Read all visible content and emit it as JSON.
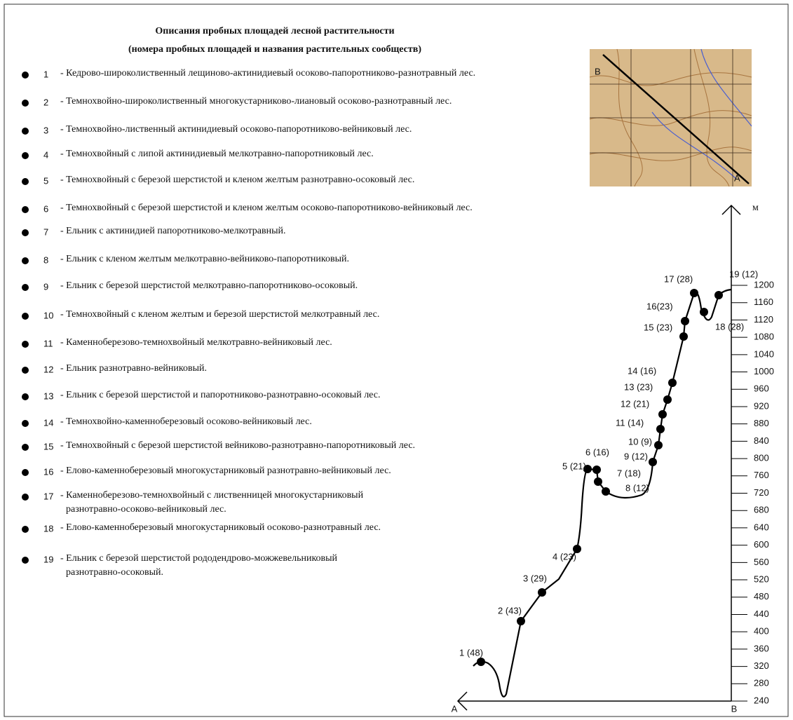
{
  "title": [
    "Описания пробных площадей лесной растительности",
    "(номера пробных площадей и названия растительных сообществ)"
  ],
  "legend": [
    {
      "number": "1",
      "lines": [
        "- Кедрово-широколиственный лещиново-актинидиевый осоково-папоротниково-разнотравный лес."
      ]
    },
    {
      "number": "2",
      "lines": [
        "- Темнохвойно-широколиственный многокустарниково-лиановый осоково-разнотравный лес."
      ]
    },
    {
      "number": "3",
      "lines": [
        "- Темнохвойно-лиственный актинидиевый осоково-папоротниково-вейниковый лес."
      ]
    },
    {
      "number": "4",
      "lines": [
        "- Темнохвойный с липой актинидиевый мелкотравно-папоротниковый лес."
      ]
    },
    {
      "number": "5",
      "lines": [
        "- Темнохвойный с березой шерстистой и кленом желтым разнотравно-осоковый лес."
      ]
    },
    {
      "number": "6",
      "lines": [
        "- Темнохвойный с березой шерстистой и кленом желтым осоково-папоротниково-вейниковый лес."
      ]
    },
    {
      "number": "7",
      "lines": [
        "- Ельник с актинидией папоротниково-мелкотравный."
      ]
    },
    {
      "number": "8",
      "lines": [
        "- Ельник с кленом желтым мелкотравно-вейниково-папоротниковый."
      ]
    },
    {
      "number": "9",
      "lines": [
        "- Ельник с березой шерстистой мелкотравно-папоротниково-осоковый."
      ]
    },
    {
      "number": "10",
      "lines": [
        "- Темнохвойный с кленом желтым и березой шерстистой мелкотравный лес."
      ]
    },
    {
      "number": "11",
      "lines": [
        "- Каменноберезово-темнохвойный мелкотравно-вейниковый лес."
      ]
    },
    {
      "number": "12",
      "lines": [
        "- Ельник разнотравно-вейниковый."
      ]
    },
    {
      "number": "13",
      "lines": [
        "- Ельник с березой шерстистой и папоротниково-разнотравно-осоковый лес."
      ]
    },
    {
      "number": "14",
      "lines": [
        "- Темнохвойно-каменноберезовый осоково-вейниковый лес."
      ]
    },
    {
      "number": "15",
      "lines": [
        "- Темнохвойный с березой шерстистой вейниково-разнотравно-папоротниковый лес."
      ]
    },
    {
      "number": "16",
      "lines": [
        "- Елово-каменноберезовый многокустарниковый разнотравно-вейниковый лес."
      ]
    },
    {
      "number": "17",
      "lines": [
        "- Каменноберезово-темнохвойный с лиственницей  многокустарниковый",
        "разнотравно-осоково-вейниковый лес."
      ]
    },
    {
      "number": "18",
      "lines": [
        "- Елово-каменноберезовый многокустарниковый осоково-разнотравный лес."
      ]
    },
    {
      "number": "19",
      "lines": [
        "- Ельник с березой шерстистой   рододендрово-можжевельниковый",
        "разнотравно-осоковый."
      ]
    }
  ],
  "profile": {
    "unit": "м",
    "start": "A",
    "end": "B",
    "yticks": [
      240,
      280,
      320,
      360,
      400,
      440,
      480,
      520,
      560,
      600,
      640,
      680,
      720,
      760,
      800,
      840,
      880,
      920,
      960,
      1000,
      1040,
      1080,
      1120,
      1160,
      1200
    ],
    "points": [
      "1 (48)",
      "2 (43)",
      "3 (29)",
      "4 (23)",
      "5 (21)",
      "6 (16)",
      "7 (18)",
      "8 (12)",
      "9 (12)",
      "10 (9)",
      "11 (14)",
      "12 (21)",
      "13 (23)",
      "14 (16)",
      "15 (23)",
      "16(23)",
      "17 (28)",
      "18 (28)",
      "19 (12)"
    ]
  },
  "map": {
    "labels": [
      "B",
      "A"
    ]
  }
}
